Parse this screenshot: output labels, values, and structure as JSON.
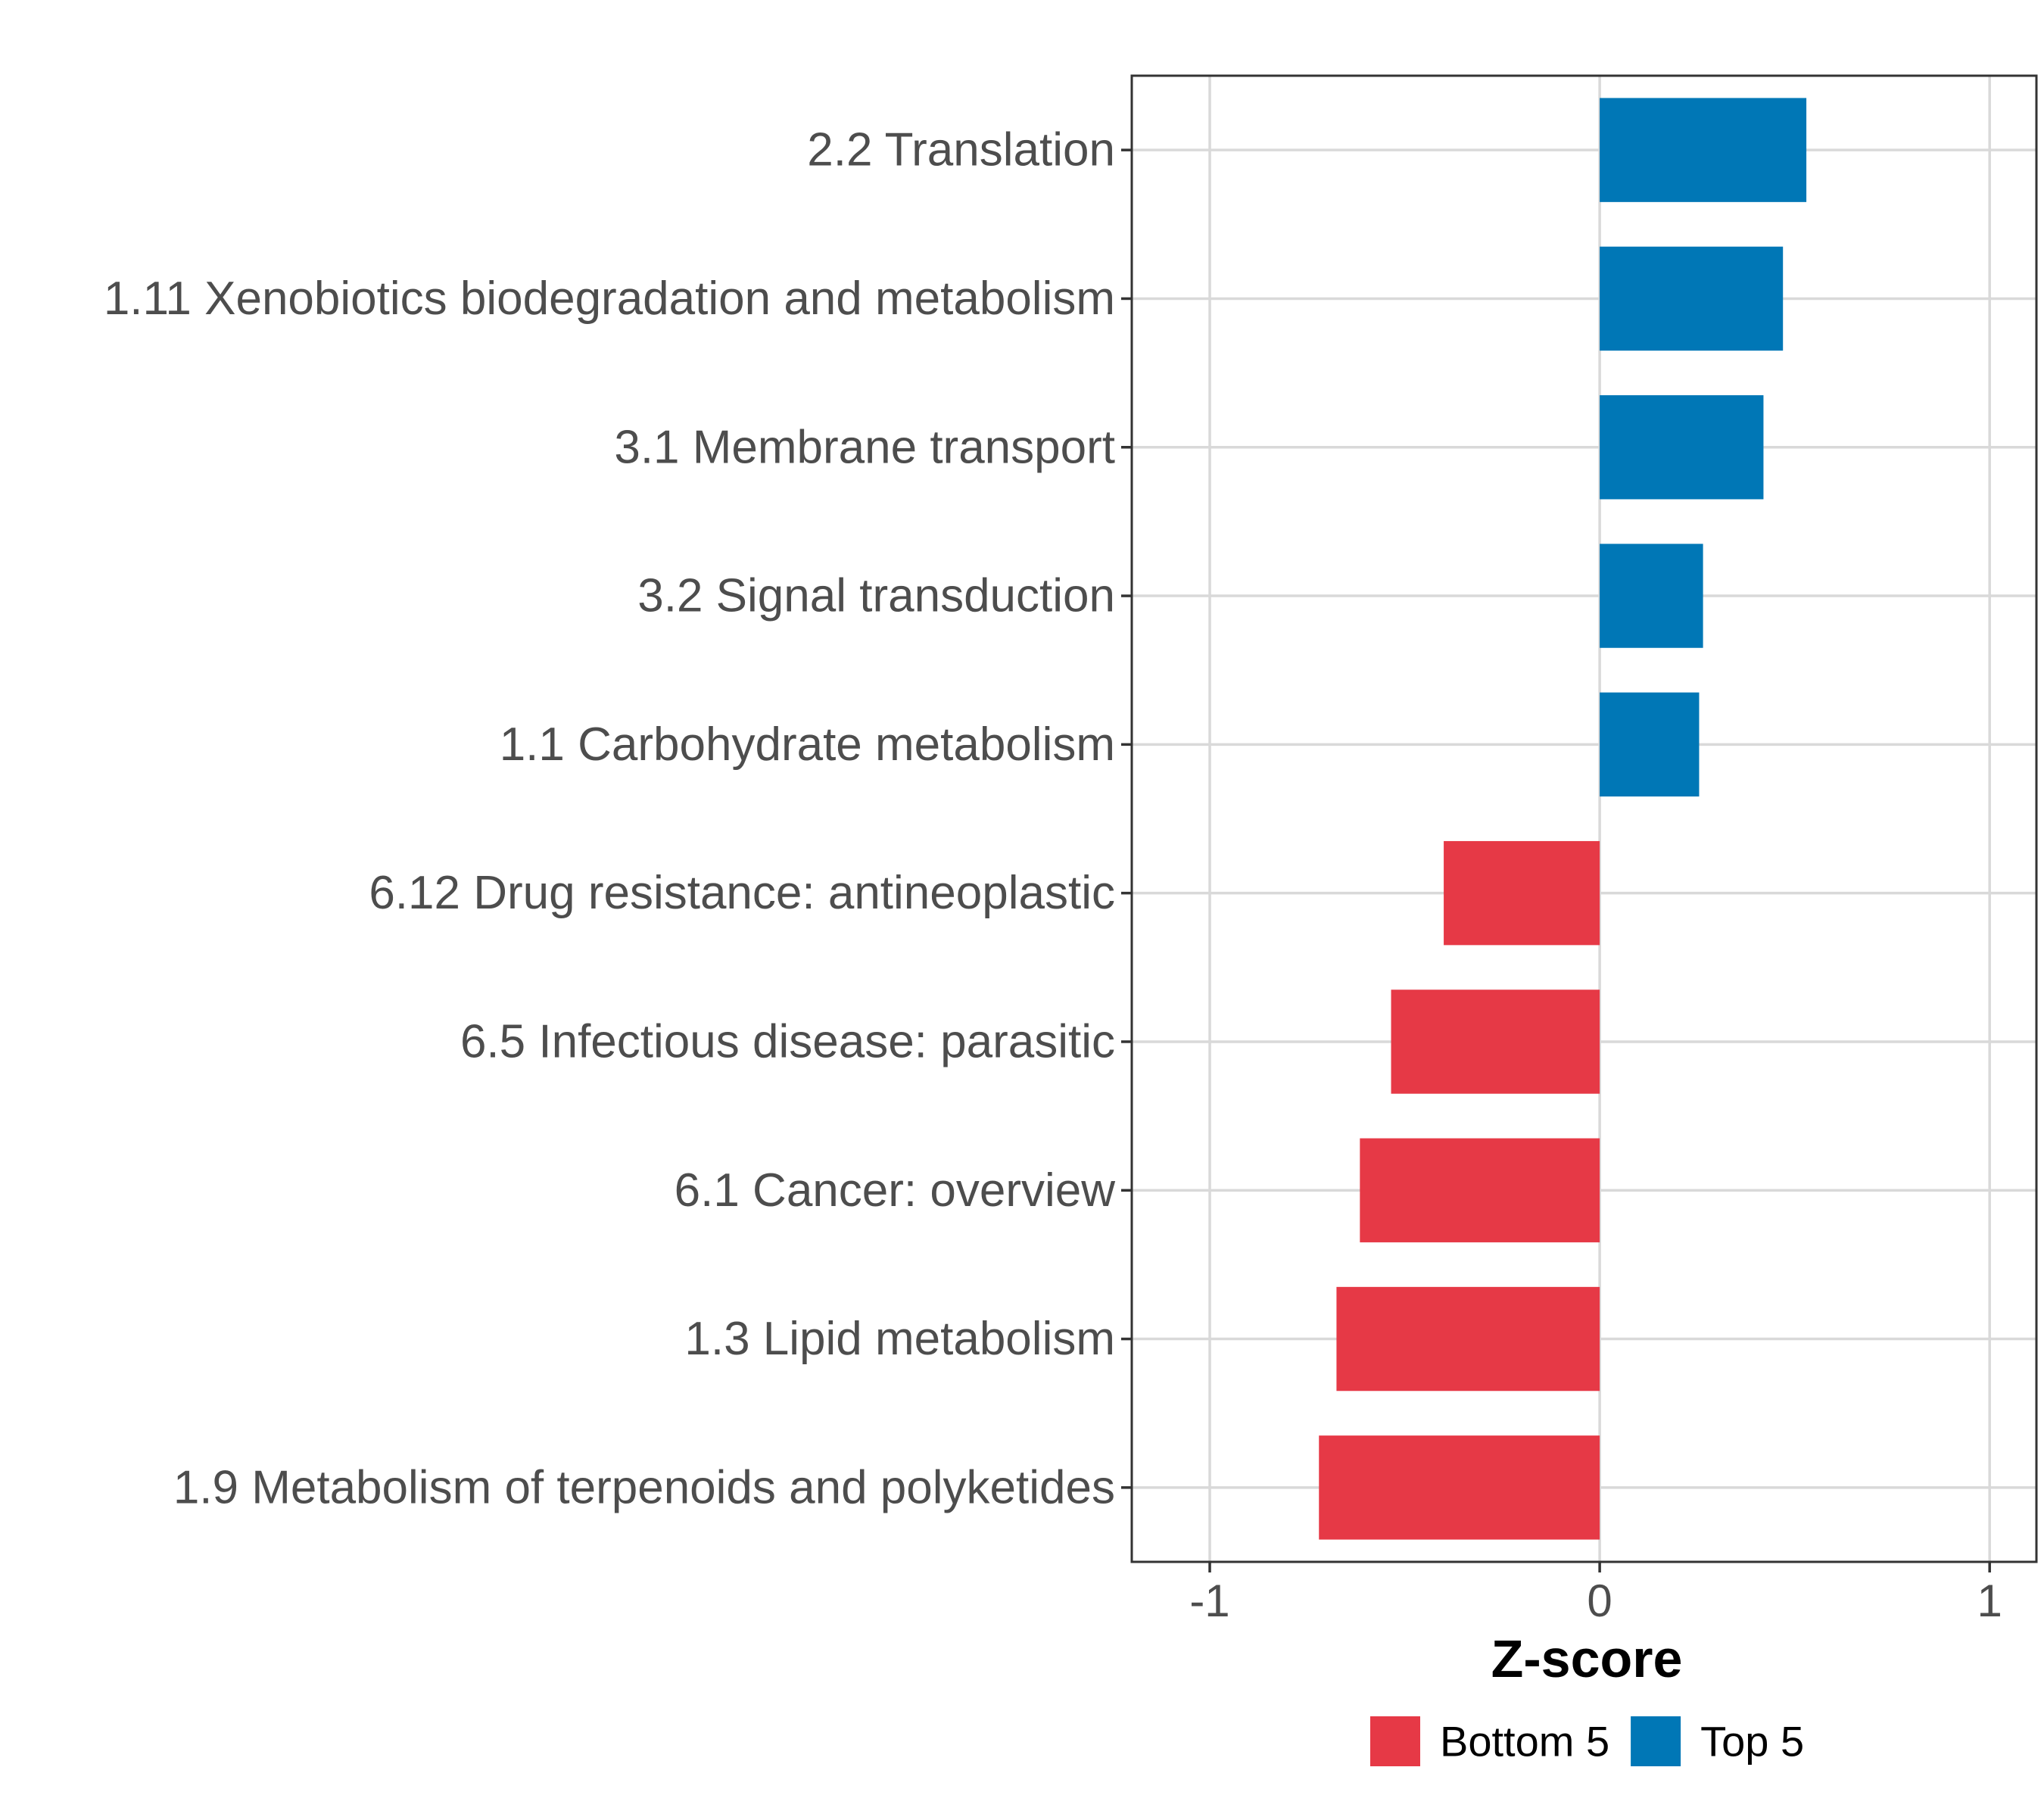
{
  "chart_data": {
    "type": "bar",
    "orientation": "horizontal",
    "title": "",
    "xlabel": "Z-score",
    "ylabel": "",
    "xlim": [
      -1.2,
      1.12
    ],
    "xticks": [
      -1,
      0,
      1
    ],
    "xtick_labels": [
      "-1",
      "0",
      "1"
    ],
    "grid": true,
    "legend_position": "bottom",
    "categories": [
      "2.2 Translation",
      "1.11 Xenobiotics biodegradation and metabolism",
      "3.1 Membrane transport",
      "3.2 Signal transduction",
      "1.1 Carbohydrate metabolism",
      "6.12 Drug resistance: antineoplastic",
      "6.5 Infectious disease: parasitic",
      "6.1 Cancer: overview",
      "1.3 Lipid metabolism",
      "1.9 Metabolism of terpenoids and polyketides"
    ],
    "values": [
      0.53,
      0.47,
      0.42,
      0.265,
      0.255,
      -0.4,
      -0.535,
      -0.615,
      -0.675,
      -0.72
    ],
    "groups": [
      "Top 5",
      "Top 5",
      "Top 5",
      "Top 5",
      "Top 5",
      "Bottom 5",
      "Bottom 5",
      "Bottom 5",
      "Bottom 5",
      "Bottom 5"
    ],
    "legend": [
      {
        "name": "Bottom 5",
        "color": "#E63946"
      },
      {
        "name": "Top 5",
        "color": "#0077B6"
      }
    ]
  }
}
